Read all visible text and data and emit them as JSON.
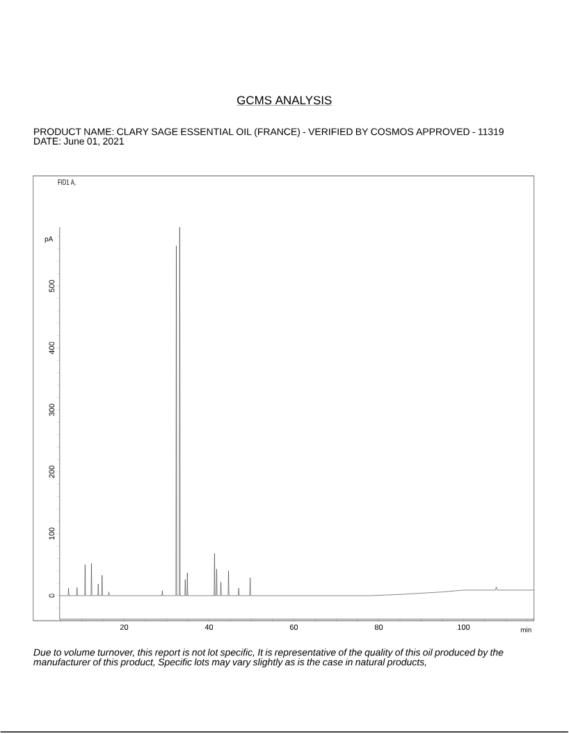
{
  "chart_data": {
    "type": "line",
    "title": "GCMS ANALYSIS",
    "subtitle": "PRODUCT NAME: CLARY SAGE ESSENTIAL OIL (FRANCE) - VERIFIED BY COSMOS APPROVED - 11319",
    "annotations": [
      "DATE: June 01, 2021",
      "FID1 A,",
      "Due to volume turnover, this report is not lot specific, It is representative of the quality of this oil produced by the manufacturer of this product, Specific lots may vary slightly as is the case in natural products,"
    ],
    "xlabel": "min",
    "ylabel": "pA",
    "x": [
      4.8,
      6.8,
      6.9,
      7.0,
      8.8,
      8.9,
      9.0,
      10.7,
      10.8,
      10.9,
      12.2,
      12.3,
      12.4,
      13.8,
      13.9,
      14.0,
      14.7,
      14.8,
      14.9,
      16.3,
      16.4,
      16.5,
      28.9,
      29.0,
      29.1,
      32.2,
      32.3,
      32.4,
      33.0,
      33.1,
      33.2,
      34.3,
      34.4,
      34.5,
      34.8,
      34.9,
      35.0,
      41.2,
      41.3,
      41.4,
      41.7,
      41.8,
      41.9,
      42.7,
      42.8,
      42.9,
      44.5,
      44.6,
      44.7,
      46.9,
      47.0,
      47.1,
      49.6,
      49.7,
      49.8,
      78,
      85,
      90,
      95,
      100,
      107.5,
      107.7,
      107.9,
      116.6
    ],
    "values": [
      0,
      0,
      12,
      0,
      0,
      13,
      0,
      0,
      50,
      0,
      0,
      52,
      0,
      0,
      19,
      0,
      0,
      33,
      0,
      0,
      6,
      0,
      0,
      8,
      0,
      0,
      565,
      0,
      0,
      595,
      0,
      0,
      26,
      0,
      0,
      37,
      0,
      0,
      68,
      0,
      0,
      43,
      0,
      0,
      22,
      0,
      0,
      40,
      0,
      0,
      12,
      0,
      0,
      29,
      0,
      0,
      2,
      4,
      6,
      9,
      9,
      14,
      9,
      9
    ],
    "color": "#333333",
    "line_style": "solid",
    "marker": "none",
    "xlim": [
      4.8,
      116.6
    ],
    "ylim": [
      -38,
      595
    ],
    "xticks": [
      {
        "value": 5,
        "label": null
      },
      {
        "value": 10,
        "label": null
      },
      {
        "value": 15,
        "label": null
      },
      20,
      {
        "value": 25,
        "label": null
      },
      {
        "value": 30,
        "label": null
      },
      {
        "value": 35,
        "label": null
      },
      40,
      {
        "value": 45,
        "label": null
      },
      {
        "value": 50,
        "label": null
      },
      {
        "value": 55,
        "label": null
      },
      60,
      {
        "value": 65,
        "label": null
      },
      {
        "value": 70,
        "label": null
      },
      {
        "value": 75,
        "label": null
      },
      80,
      {
        "value": 85,
        "label": null
      },
      {
        "value": 90,
        "label": null
      },
      {
        "value": 95,
        "label": null
      },
      100,
      {
        "value": 105,
        "label": null
      },
      {
        "value": 110,
        "label": null
      },
      {
        "value": 115,
        "label": null
      }
    ],
    "yticks": [
      {
        "value": -20,
        "label": null
      },
      0,
      {
        "value": 20,
        "label": null
      },
      {
        "value": 40,
        "label": null
      },
      {
        "value": 60,
        "label": null
      },
      {
        "value": 80,
        "label": null
      },
      100,
      {
        "value": 120,
        "label": null
      },
      {
        "value": 140,
        "label": null
      },
      {
        "value": 160,
        "label": null
      },
      {
        "value": 180,
        "label": null
      },
      200,
      {
        "value": 220,
        "label": null
      },
      {
        "value": 240,
        "label": null
      },
      {
        "value": 260,
        "label": null
      },
      {
        "value": 280,
        "label": null
      },
      300,
      {
        "value": 320,
        "label": null
      },
      {
        "value": 340,
        "label": null
      },
      {
        "value": 360,
        "label": null
      },
      {
        "value": 380,
        "label": null
      },
      400,
      {
        "value": 420,
        "label": null
      },
      {
        "value": 440,
        "label": null
      },
      {
        "value": 460,
        "label": null
      },
      {
        "value": 480,
        "label": null
      },
      500,
      {
        "value": 520,
        "label": null
      },
      {
        "value": 540,
        "label": null
      },
      {
        "value": 560,
        "label": null
      },
      {
        "value": 580,
        "label": null
      }
    ]
  }
}
